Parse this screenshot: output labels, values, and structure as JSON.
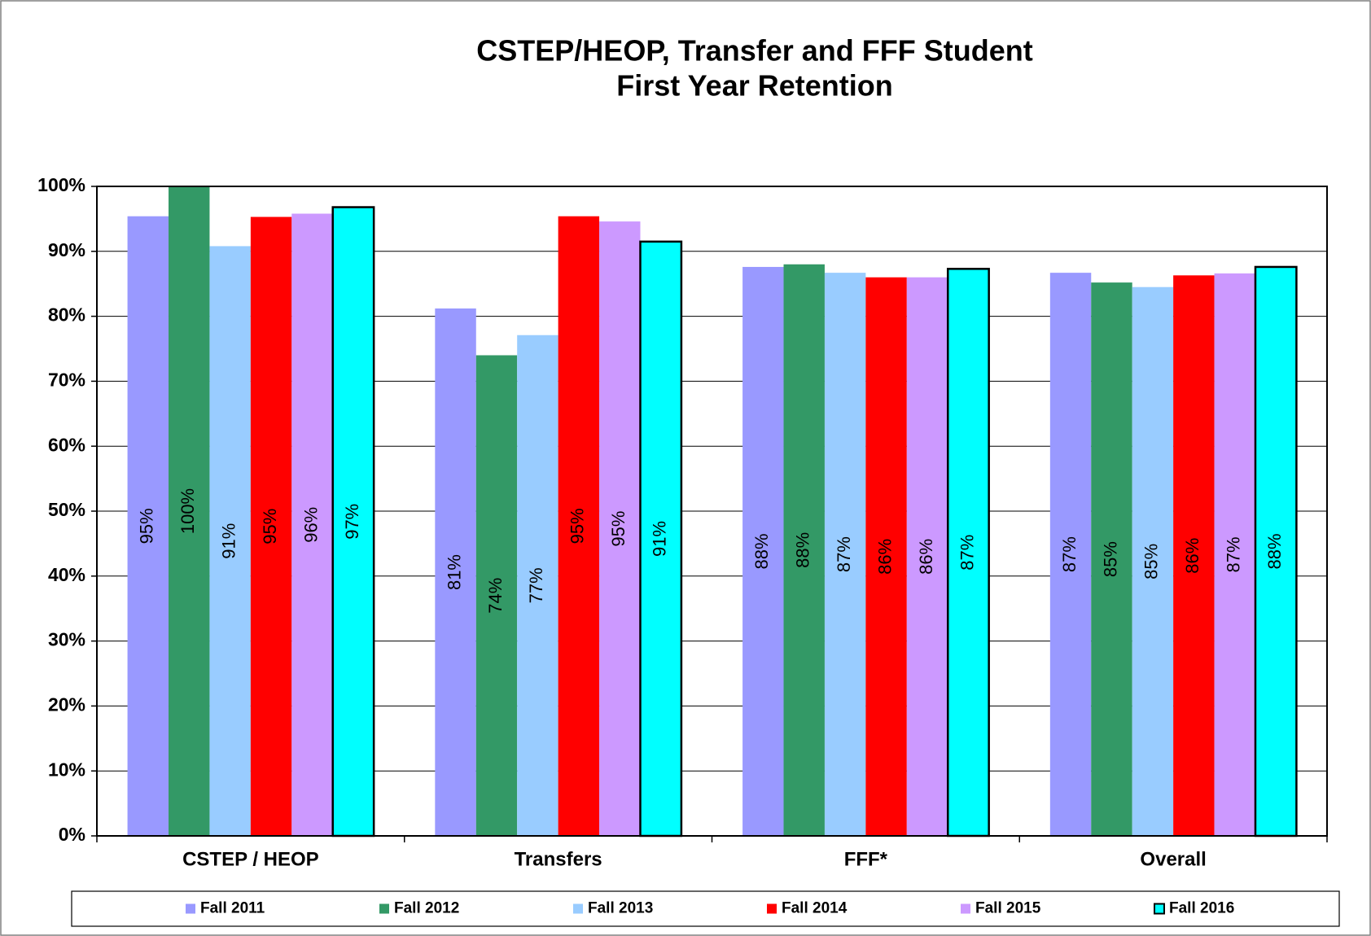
{
  "chart_data": {
    "type": "bar",
    "title": "CSTEP/HEOP, Transfer and FFF Student",
    "subtitle": "First Year Retention",
    "categories": [
      "CSTEP / HEOP",
      "Transfers",
      "FFF*",
      "Overall"
    ],
    "series": [
      {
        "name": "Fall 2011",
        "color": "#9999ff",
        "values": [
          95.4,
          81.2,
          87.6,
          86.7
        ],
        "value_labels": [
          "95%",
          "81%",
          "88%",
          "87%"
        ]
      },
      {
        "name": "Fall 2012",
        "color": "#339966",
        "values": [
          100,
          74.0,
          88.0,
          85.2
        ],
        "value_labels": [
          "100%",
          "74%",
          "88%",
          "85%"
        ]
      },
      {
        "name": "Fall 2013",
        "color": "#99ccff",
        "values": [
          90.8,
          77.1,
          86.7,
          84.5
        ],
        "value_labels": [
          "91%",
          "77%",
          "87%",
          "85%"
        ]
      },
      {
        "name": "Fall 2014",
        "color": "#ff0000",
        "values": [
          95.3,
          95.4,
          86.0,
          86.3
        ],
        "value_labels": [
          "95%",
          "95%",
          "86%",
          "86%"
        ]
      },
      {
        "name": "Fall 2015",
        "color": "#cc99ff",
        "values": [
          95.8,
          94.6,
          86.0,
          86.6
        ],
        "value_labels": [
          "96%",
          "95%",
          "86%",
          "87%"
        ]
      },
      {
        "name": "Fall 2016",
        "color": "#00ffff",
        "outline": "#000000",
        "values": [
          96.8,
          91.5,
          87.3,
          87.6
        ],
        "value_labels": [
          "97%",
          "91%",
          "87%",
          "88%"
        ]
      }
    ],
    "ylim": [
      0,
      100
    ],
    "yticks": [
      {
        "value": 0,
        "label": "0%"
      },
      {
        "value": 10,
        "label": "10%"
      },
      {
        "value": 20,
        "label": "20%"
      },
      {
        "value": 30,
        "label": "30%"
      },
      {
        "value": 40,
        "label": "40%"
      },
      {
        "value": 50,
        "label": "50%"
      },
      {
        "value": 60,
        "label": "60%"
      },
      {
        "value": 70,
        "label": "70%"
      },
      {
        "value": 80,
        "label": "80%"
      },
      {
        "value": 90,
        "label": "90%"
      },
      {
        "value": 100,
        "label": "100%"
      }
    ],
    "grid": true,
    "legend": "bottom"
  }
}
